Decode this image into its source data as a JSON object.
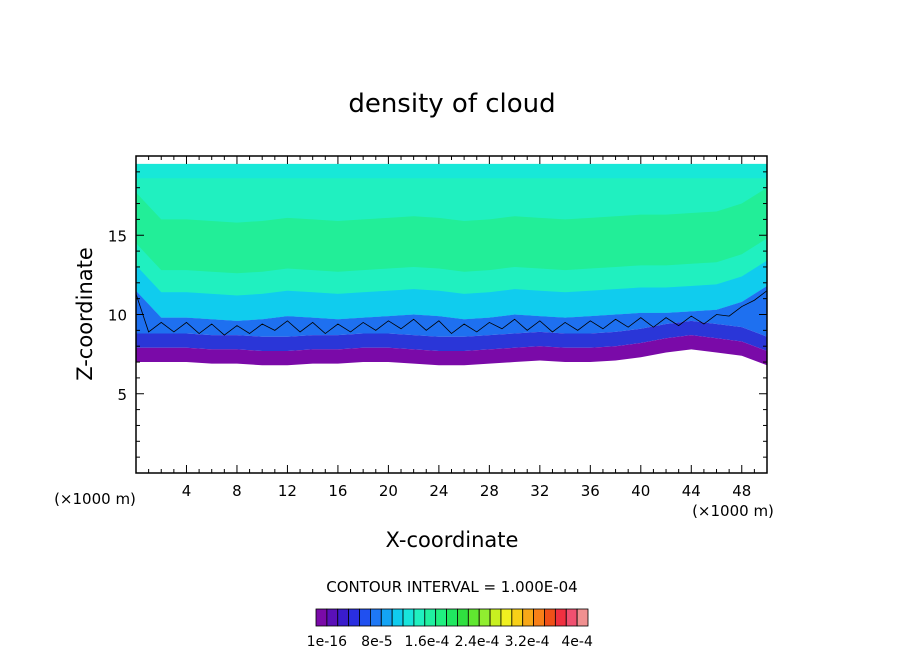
{
  "chart_data": {
    "type": "heatmap",
    "title": "density of cloud",
    "xlabel": "X-coordinate",
    "ylabel": "Z-coordinate",
    "x_units": "(×1000 m)",
    "z_units": "(×1000 m)",
    "xlim": [
      0,
      50
    ],
    "ylim": [
      0,
      20
    ],
    "x_ticks": [
      "4",
      "8",
      "12",
      "16",
      "20",
      "24",
      "28",
      "32",
      "36",
      "40",
      "44",
      "48"
    ],
    "x_tick_values": [
      4,
      8,
      12,
      16,
      20,
      24,
      28,
      32,
      36,
      40,
      44,
      48
    ],
    "y_ticks": [
      "5",
      "10",
      "15"
    ],
    "y_tick_values": [
      5,
      10,
      15
    ],
    "contour_interval_label": "CONTOUR INTERVAL = 1.000E-04",
    "colorbar_labels": [
      "1e-16",
      "8e-5",
      "1.6e-4",
      "2.4e-4",
      "3.2e-4",
      "4e-4"
    ],
    "colorbar_label_values": [
      0,
      8e-05,
      0.00016,
      0.00024,
      0.00032,
      0.0004
    ],
    "colorbar_colors": [
      "#7a0aa8",
      "#5a10b8",
      "#3a1ccc",
      "#2a2ee0",
      "#2050f0",
      "#1e78f5",
      "#14a4f5",
      "#10ccee",
      "#18e4dc",
      "#20f0c0",
      "#20f0a0",
      "#20f080",
      "#20e860",
      "#30e040",
      "#60e830",
      "#90ee30",
      "#c8f020",
      "#f0f020",
      "#f8d018",
      "#f8a818",
      "#f88018",
      "#f05018",
      "#f03040",
      "#f05070",
      "#f09090"
    ],
    "cloud_base_km": [
      7.0,
      7.0,
      7.0,
      6.9,
      6.9,
      6.8,
      6.8,
      6.9,
      6.9,
      7.0,
      7.0,
      6.9,
      6.8,
      6.8,
      6.9,
      7.0,
      7.1,
      7.0,
      7.0,
      7.1,
      7.3,
      7.6,
      7.8,
      7.6,
      7.4,
      6.8
    ],
    "cloud_top_km": 19.5,
    "layer_10_level_km": [
      11.5,
      9.8,
      9.8,
      9.7,
      9.6,
      9.7,
      9.9,
      9.8,
      9.7,
      9.8,
      9.9,
      10.0,
      9.9,
      9.7,
      9.8,
      10.0,
      9.9,
      9.8,
      9.9,
      10.0,
      10.1,
      10.1,
      10.2,
      10.3,
      10.8,
      11.8
    ],
    "x_profile": [
      0,
      2,
      4,
      6,
      8,
      10,
      12,
      14,
      16,
      18,
      20,
      22,
      24,
      26,
      28,
      30,
      32,
      34,
      36,
      38,
      40,
      42,
      44,
      46,
      48,
      50
    ]
  }
}
